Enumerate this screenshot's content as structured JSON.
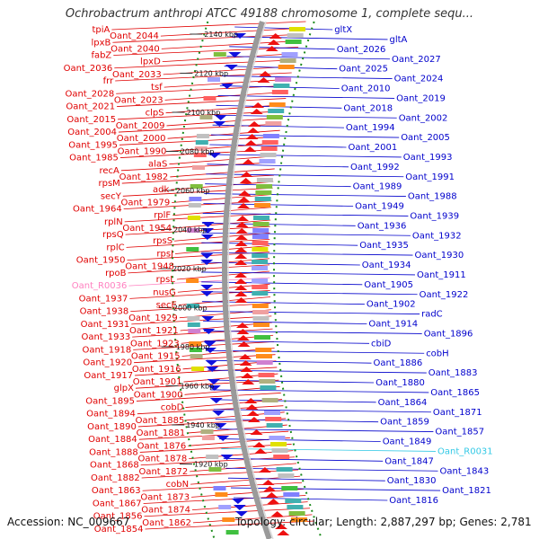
{
  "title": "Ochrobactrum anthropi ATCC 49188 chromosome 1, complete sequ...",
  "accession": "Accession: NC_009667",
  "topology": "Topology: circular; Length: 2,887,297 bp; Genes: 2,781",
  "colors": {
    "left_labels": "#e00000",
    "right_labels": "#0000cc",
    "rna_left": "#ff80c0",
    "rna_right": "#33c9e6",
    "backbone": "#9a9a9a",
    "dotted_track": "#1c8a1c"
  },
  "ticks": [
    "2140 kbp",
    "2120 kbp",
    "2100 kbp",
    "2080 kbp",
    "2060 kbp",
    "2040 kbp",
    "2020 kbp",
    "2000 kbp",
    "1980 kbp",
    "1960 kbp",
    "1940 kbp",
    "1920 kbp"
  ],
  "left_labels": [
    "tpiA",
    "Oant_2044",
    "lpxB",
    "Oant_2040",
    "fabZ",
    "lpxD",
    "Oant_2036",
    "Oant_2033",
    "frr",
    "tsf",
    "Oant_2028",
    "Oant_2023",
    "Oant_2021",
    "clpS",
    "Oant_2015",
    "Oant_2009",
    "Oant_2004",
    "Oant_2000",
    "Oant_1995",
    "Oant_1990",
    "Oant_1985",
    "alaS",
    "recA",
    "Oant_1982",
    "rpsM",
    "adk",
    "secY",
    "Oant_1979",
    "Oant_1964",
    "rplF",
    "rplN",
    "Oant_1954",
    "rpsQ",
    "rpsS",
    "rplC",
    "rpsJ",
    "Oant_1950",
    "Oant_1948",
    "rpoB",
    "rpsL",
    "Oant_R0036",
    "nusG",
    "Oant_1937",
    "secE",
    "Oant_1938",
    "Oant_1929",
    "Oant_1931",
    "Oant_1921",
    "Oant_1933",
    "Oant_1923",
    "Oant_1918",
    "Oant_1915",
    "Oant_1920",
    "Oant_1916",
    "Oant_1917",
    "Oant_1901",
    "glpX",
    "Oant_1900",
    "Oant_1895",
    "cobD",
    "Oant_1894",
    "Oant_1885",
    "Oant_1890",
    "Oant_1881",
    "Oant_1884",
    "Oant_1876",
    "Oant_1888",
    "Oant_1878",
    "Oant_1868",
    "Oant_1872",
    "Oant_1882",
    "cobN",
    "Oant_1863",
    "Oant_1873",
    "Oant_1867",
    "Oant_1874",
    "Oant_1856",
    "Oant_1862",
    "Oant_1854"
  ],
  "right_labels": [
    "gltX",
    "gltA",
    "Oant_2026",
    "Oant_2027",
    "Oant_2025",
    "Oant_2024",
    "Oant_2010",
    "Oant_2019",
    "Oant_2018",
    "Oant_2002",
    "Oant_1994",
    "Oant_2005",
    "Oant_2001",
    "Oant_1993",
    "Oant_1992",
    "Oant_1991",
    "Oant_1989",
    "Oant_1988",
    "Oant_1949",
    "Oant_1939",
    "Oant_1936",
    "Oant_1932",
    "Oant_1935",
    "Oant_1930",
    "Oant_1934",
    "Oant_1911",
    "Oant_1905",
    "Oant_1922",
    "Oant_1902",
    "radC",
    "Oant_1914",
    "Oant_1896",
    "cbiD",
    "cobH",
    "Oant_1886",
    "Oant_1883",
    "Oant_1880",
    "Oant_1865",
    "Oant_1864",
    "Oant_1871",
    "Oant_1859",
    "Oant_1857",
    "Oant_1849",
    "Oant_R0031",
    "Oant_1847",
    "Oant_1843",
    "Oant_1830",
    "Oant_1821",
    "Oant_1816"
  ]
}
